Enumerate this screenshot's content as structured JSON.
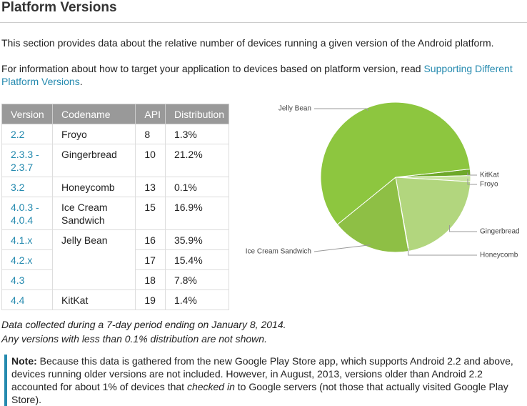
{
  "header": {
    "title": "Platform Versions"
  },
  "intro": {
    "p1": "This section provides data about the relative number of devices running a given version of the Android platform.",
    "p2_text": "For information about how to target your application to devices based on platform version, read ",
    "p2_link": "Supporting Different Platform Versions",
    "p2_end": "."
  },
  "table": {
    "header": [
      "Version",
      "Codename",
      "API",
      "Distribution"
    ],
    "rows": [
      {
        "version": "2.2",
        "codename": "Froyo",
        "api": "8",
        "distribution": "1.3%"
      },
      {
        "version": "2.3.3 - 2.3.7",
        "codename": "Gingerbread",
        "api": "10",
        "distribution": "21.2%"
      },
      {
        "version": "3.2",
        "codename": "Honeycomb",
        "api": "13",
        "distribution": "0.1%"
      },
      {
        "version": "4.0.3 - 4.0.4",
        "codename": "Ice Cream Sandwich",
        "api": "15",
        "distribution": "16.9%"
      },
      {
        "version": "4.1.x",
        "codename": "Jelly Bean",
        "api": "16",
        "distribution": "35.9%"
      },
      {
        "version": "4.2.x",
        "api": "17",
        "distribution": "15.4%"
      },
      {
        "version": "4.3",
        "api": "18",
        "distribution": "7.8%"
      },
      {
        "version": "4.4",
        "codename": "KitKat",
        "api": "19",
        "distribution": "1.4%"
      }
    ]
  },
  "chart_data": {
    "type": "pie",
    "categories": [
      "KitKat",
      "Froyo",
      "Gingerbread",
      "Honeycomb",
      "Ice Cream Sandwich",
      "Jelly Bean"
    ],
    "values": [
      1.4,
      1.3,
      21.2,
      0.1,
      16.9,
      59.1
    ],
    "colors": [
      "#6ea82a",
      "#c7e39d",
      "#b2d67e",
      "#a4cf63",
      "#8ebf45",
      "#8dc63f"
    ]
  },
  "footnote": {
    "line1": "Data collected during a 7-day period ending on January 8, 2014.",
    "line2": "Any versions with less than 0.1% distribution are not shown."
  },
  "note": {
    "label": "Note:",
    "text1": " Because this data is gathered from the new Google Play Store app, which supports Android 2.2 and above, devices running older versions are not included. However, in August, 2013, versions older than Android 2.2 accounted for about 1% of devices that ",
    "em": "checked in",
    "text2": " to Google servers (not those that actually visited Google Play Store)."
  }
}
